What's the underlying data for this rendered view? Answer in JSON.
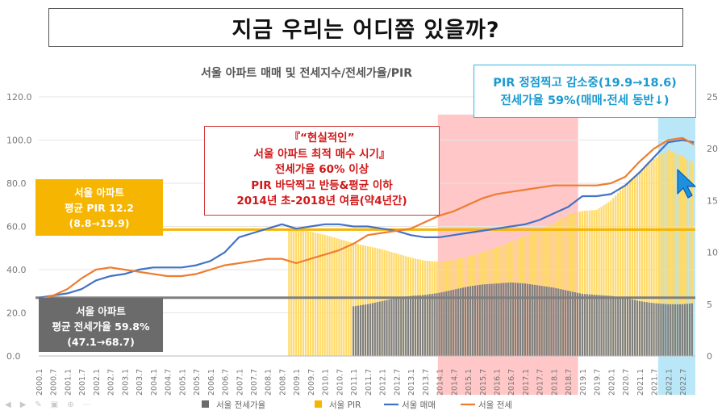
{
  "headline": "지금 우리는 어디쯤 있을까?",
  "chart_data": {
    "type": "bar+line",
    "title": "서울 아파트 매매 및 전세지수/전세가율/PIR",
    "left_axis": {
      "ylim": [
        0,
        120
      ],
      "ticks": [
        "0.0",
        "20.0",
        "40.0",
        "60.0",
        "80.0",
        "100.0",
        "120.0"
      ]
    },
    "right_axis": {
      "ylim": [
        0,
        25
      ],
      "ticks": [
        "0",
        "5",
        "10",
        "15",
        "20",
        "25"
      ]
    },
    "x_labels": [
      "2000.1",
      "2000.7",
      "2001.1",
      "2001.7",
      "2002.1",
      "2002.7",
      "2003.1",
      "2003.7",
      "2004.1",
      "2004.7",
      "2005.1",
      "2005.7",
      "2006.1",
      "2006.7",
      "2007.1",
      "2007.7",
      "2008.1",
      "2008.7",
      "2009.1",
      "2009.7",
      "2010.1",
      "2010.7",
      "2011.1",
      "2011.7",
      "2012.1",
      "2012.7",
      "2013.1",
      "2013.7",
      "2014.1",
      "2014.7",
      "2015.1",
      "2015.7",
      "2016.1",
      "2016.7",
      "2017.1",
      "2017.7",
      "2018.1",
      "2018.7",
      "2019.1",
      "2019.7",
      "2020.1",
      "2020.7",
      "2021.1",
      "2021.7",
      "2022.1",
      "2022.7"
    ],
    "series": [
      {
        "name": "서울 전세가율",
        "kind": "bar",
        "axis": "right",
        "color": "#7f7f7f",
        "points": [
          [
            2011.0,
            4.8
          ],
          [
            2011.5,
            5.0
          ],
          [
            2012.0,
            5.3
          ],
          [
            2012.5,
            5.6
          ],
          [
            2013.0,
            5.8
          ],
          [
            2013.5,
            5.9
          ],
          [
            2014.0,
            6.1
          ],
          [
            2014.5,
            6.4
          ],
          [
            2015.0,
            6.7
          ],
          [
            2015.5,
            6.9
          ],
          [
            2016.0,
            7.0
          ],
          [
            2016.5,
            7.1
          ],
          [
            2017.0,
            7.0
          ],
          [
            2017.5,
            6.8
          ],
          [
            2018.0,
            6.6
          ],
          [
            2018.5,
            6.3
          ],
          [
            2019.0,
            6.0
          ],
          [
            2019.5,
            5.9
          ],
          [
            2020.0,
            5.8
          ],
          [
            2020.5,
            5.6
          ],
          [
            2021.0,
            5.3
          ],
          [
            2021.5,
            5.1
          ],
          [
            2022.0,
            5.0
          ],
          [
            2022.5,
            5.0
          ],
          [
            2022.9,
            5.1
          ]
        ]
      },
      {
        "name": "서울 PIR",
        "kind": "bar",
        "axis": "right",
        "color": "#ffd966",
        "points": [
          [
            2008.75,
            12.3
          ],
          [
            2009.0,
            12.2
          ],
          [
            2009.5,
            12.0
          ],
          [
            2010.0,
            11.7
          ],
          [
            2010.5,
            11.3
          ],
          [
            2011.0,
            10.9
          ],
          [
            2011.5,
            10.6
          ],
          [
            2012.0,
            10.3
          ],
          [
            2012.5,
            9.9
          ],
          [
            2013.0,
            9.5
          ],
          [
            2013.5,
            9.2
          ],
          [
            2014.0,
            9.1
          ],
          [
            2014.5,
            9.3
          ],
          [
            2015.0,
            9.6
          ],
          [
            2015.5,
            10.0
          ],
          [
            2016.0,
            10.5
          ],
          [
            2016.5,
            11.0
          ],
          [
            2017.0,
            11.6
          ],
          [
            2017.5,
            12.2
          ],
          [
            2018.0,
            12.8
          ],
          [
            2018.5,
            13.6
          ],
          [
            2019.0,
            14.0
          ],
          [
            2019.5,
            14.1
          ],
          [
            2020.0,
            15.0
          ],
          [
            2020.5,
            16.5
          ],
          [
            2021.0,
            17.8
          ],
          [
            2021.5,
            19.0
          ],
          [
            2022.0,
            19.9
          ],
          [
            2022.5,
            19.3
          ],
          [
            2022.9,
            18.6
          ]
        ]
      },
      {
        "name": "서울 매매",
        "kind": "line",
        "axis": "left",
        "color": "#4472c4",
        "points": [
          [
            2000.0,
            27
          ],
          [
            2000.5,
            28
          ],
          [
            2001.0,
            29
          ],
          [
            2001.5,
            31
          ],
          [
            2002.0,
            35
          ],
          [
            2002.5,
            37
          ],
          [
            2003.0,
            38
          ],
          [
            2003.5,
            40
          ],
          [
            2004.0,
            41
          ],
          [
            2004.5,
            41
          ],
          [
            2005.0,
            41
          ],
          [
            2005.5,
            42
          ],
          [
            2006.0,
            44
          ],
          [
            2006.5,
            48
          ],
          [
            2007.0,
            55
          ],
          [
            2007.5,
            57
          ],
          [
            2008.0,
            59
          ],
          [
            2008.5,
            61
          ],
          [
            2009.0,
            59
          ],
          [
            2009.5,
            60
          ],
          [
            2010.0,
            61
          ],
          [
            2010.5,
            61
          ],
          [
            2011.0,
            60
          ],
          [
            2011.5,
            60
          ],
          [
            2012.0,
            59
          ],
          [
            2012.5,
            58
          ],
          [
            2013.0,
            56
          ],
          [
            2013.5,
            55
          ],
          [
            2014.0,
            55
          ],
          [
            2014.5,
            56
          ],
          [
            2015.0,
            57
          ],
          [
            2015.5,
            58
          ],
          [
            2016.0,
            59
          ],
          [
            2016.5,
            60
          ],
          [
            2017.0,
            61
          ],
          [
            2017.5,
            63
          ],
          [
            2018.0,
            66
          ],
          [
            2018.5,
            69
          ],
          [
            2019.0,
            74
          ],
          [
            2019.5,
            74
          ],
          [
            2020.0,
            75
          ],
          [
            2020.5,
            79
          ],
          [
            2021.0,
            85
          ],
          [
            2021.5,
            92
          ],
          [
            2022.0,
            99
          ],
          [
            2022.5,
            100
          ],
          [
            2022.9,
            99
          ]
        ]
      },
      {
        "name": "서울 전세",
        "kind": "line",
        "axis": "left",
        "color": "#ed7d31",
        "points": [
          [
            2000.0,
            26
          ],
          [
            2000.5,
            28
          ],
          [
            2001.0,
            31
          ],
          [
            2001.5,
            36
          ],
          [
            2002.0,
            40
          ],
          [
            2002.5,
            41
          ],
          [
            2003.0,
            40
          ],
          [
            2003.5,
            39
          ],
          [
            2004.0,
            38
          ],
          [
            2004.5,
            37
          ],
          [
            2005.0,
            37
          ],
          [
            2005.5,
            38
          ],
          [
            2006.0,
            40
          ],
          [
            2006.5,
            42
          ],
          [
            2007.0,
            43
          ],
          [
            2007.5,
            44
          ],
          [
            2008.0,
            45
          ],
          [
            2008.5,
            45
          ],
          [
            2009.0,
            43
          ],
          [
            2009.5,
            45
          ],
          [
            2010.0,
            47
          ],
          [
            2010.5,
            49
          ],
          [
            2011.0,
            52
          ],
          [
            2011.5,
            56
          ],
          [
            2012.0,
            57
          ],
          [
            2012.5,
            58
          ],
          [
            2013.0,
            59
          ],
          [
            2013.5,
            62
          ],
          [
            2014.0,
            65
          ],
          [
            2014.5,
            67
          ],
          [
            2015.0,
            70
          ],
          [
            2015.5,
            73
          ],
          [
            2016.0,
            75
          ],
          [
            2016.5,
            76
          ],
          [
            2017.0,
            77
          ],
          [
            2017.5,
            78
          ],
          [
            2018.0,
            79
          ],
          [
            2018.5,
            79
          ],
          [
            2019.0,
            79
          ],
          [
            2019.5,
            79
          ],
          [
            2020.0,
            80
          ],
          [
            2020.5,
            83
          ],
          [
            2021.0,
            90
          ],
          [
            2021.5,
            96
          ],
          [
            2022.0,
            100
          ],
          [
            2022.5,
            101
          ],
          [
            2022.9,
            98
          ]
        ]
      }
    ],
    "reference_lines": [
      {
        "axis": "right",
        "value": 12.2,
        "color": "#f6b500"
      },
      {
        "axis": "left",
        "value": 27,
        "color": "#7f7f7f"
      }
    ],
    "highlight_bands": [
      {
        "from": 2013.95,
        "to": 2018.85,
        "color": "#ff9999"
      },
      {
        "from": 2021.65,
        "to": 2022.95,
        "color": "#7fd3f0"
      }
    ],
    "legend_placement": "bottom"
  },
  "callouts": {
    "pir": [
      "PIR 정점찍고 감소중(19.9→18.6)",
      "전세가율 59%(매매·전세 동반↓)"
    ],
    "optimal": [
      "『“현실적인”",
      "서울 아파트 최적 매수 시기』",
      "전세가율 60% 이상",
      "PIR 바닥찍고 반등&평균 이하",
      "2014년 초-2018년 여름(약4년간)"
    ],
    "avg_pir": [
      "서울 아파트",
      "평균 PIR 12.2",
      "(8.8→19.9)"
    ],
    "avg_jeonse": [
      "서울 아파트",
      "평균 전세가율 59.8%",
      "(47.1→68.7)"
    ]
  },
  "footer_icons": [
    "play-icon",
    "pointer-icon",
    "pen-icon",
    "screen-icon",
    "zoom-icon",
    "more-icon"
  ]
}
